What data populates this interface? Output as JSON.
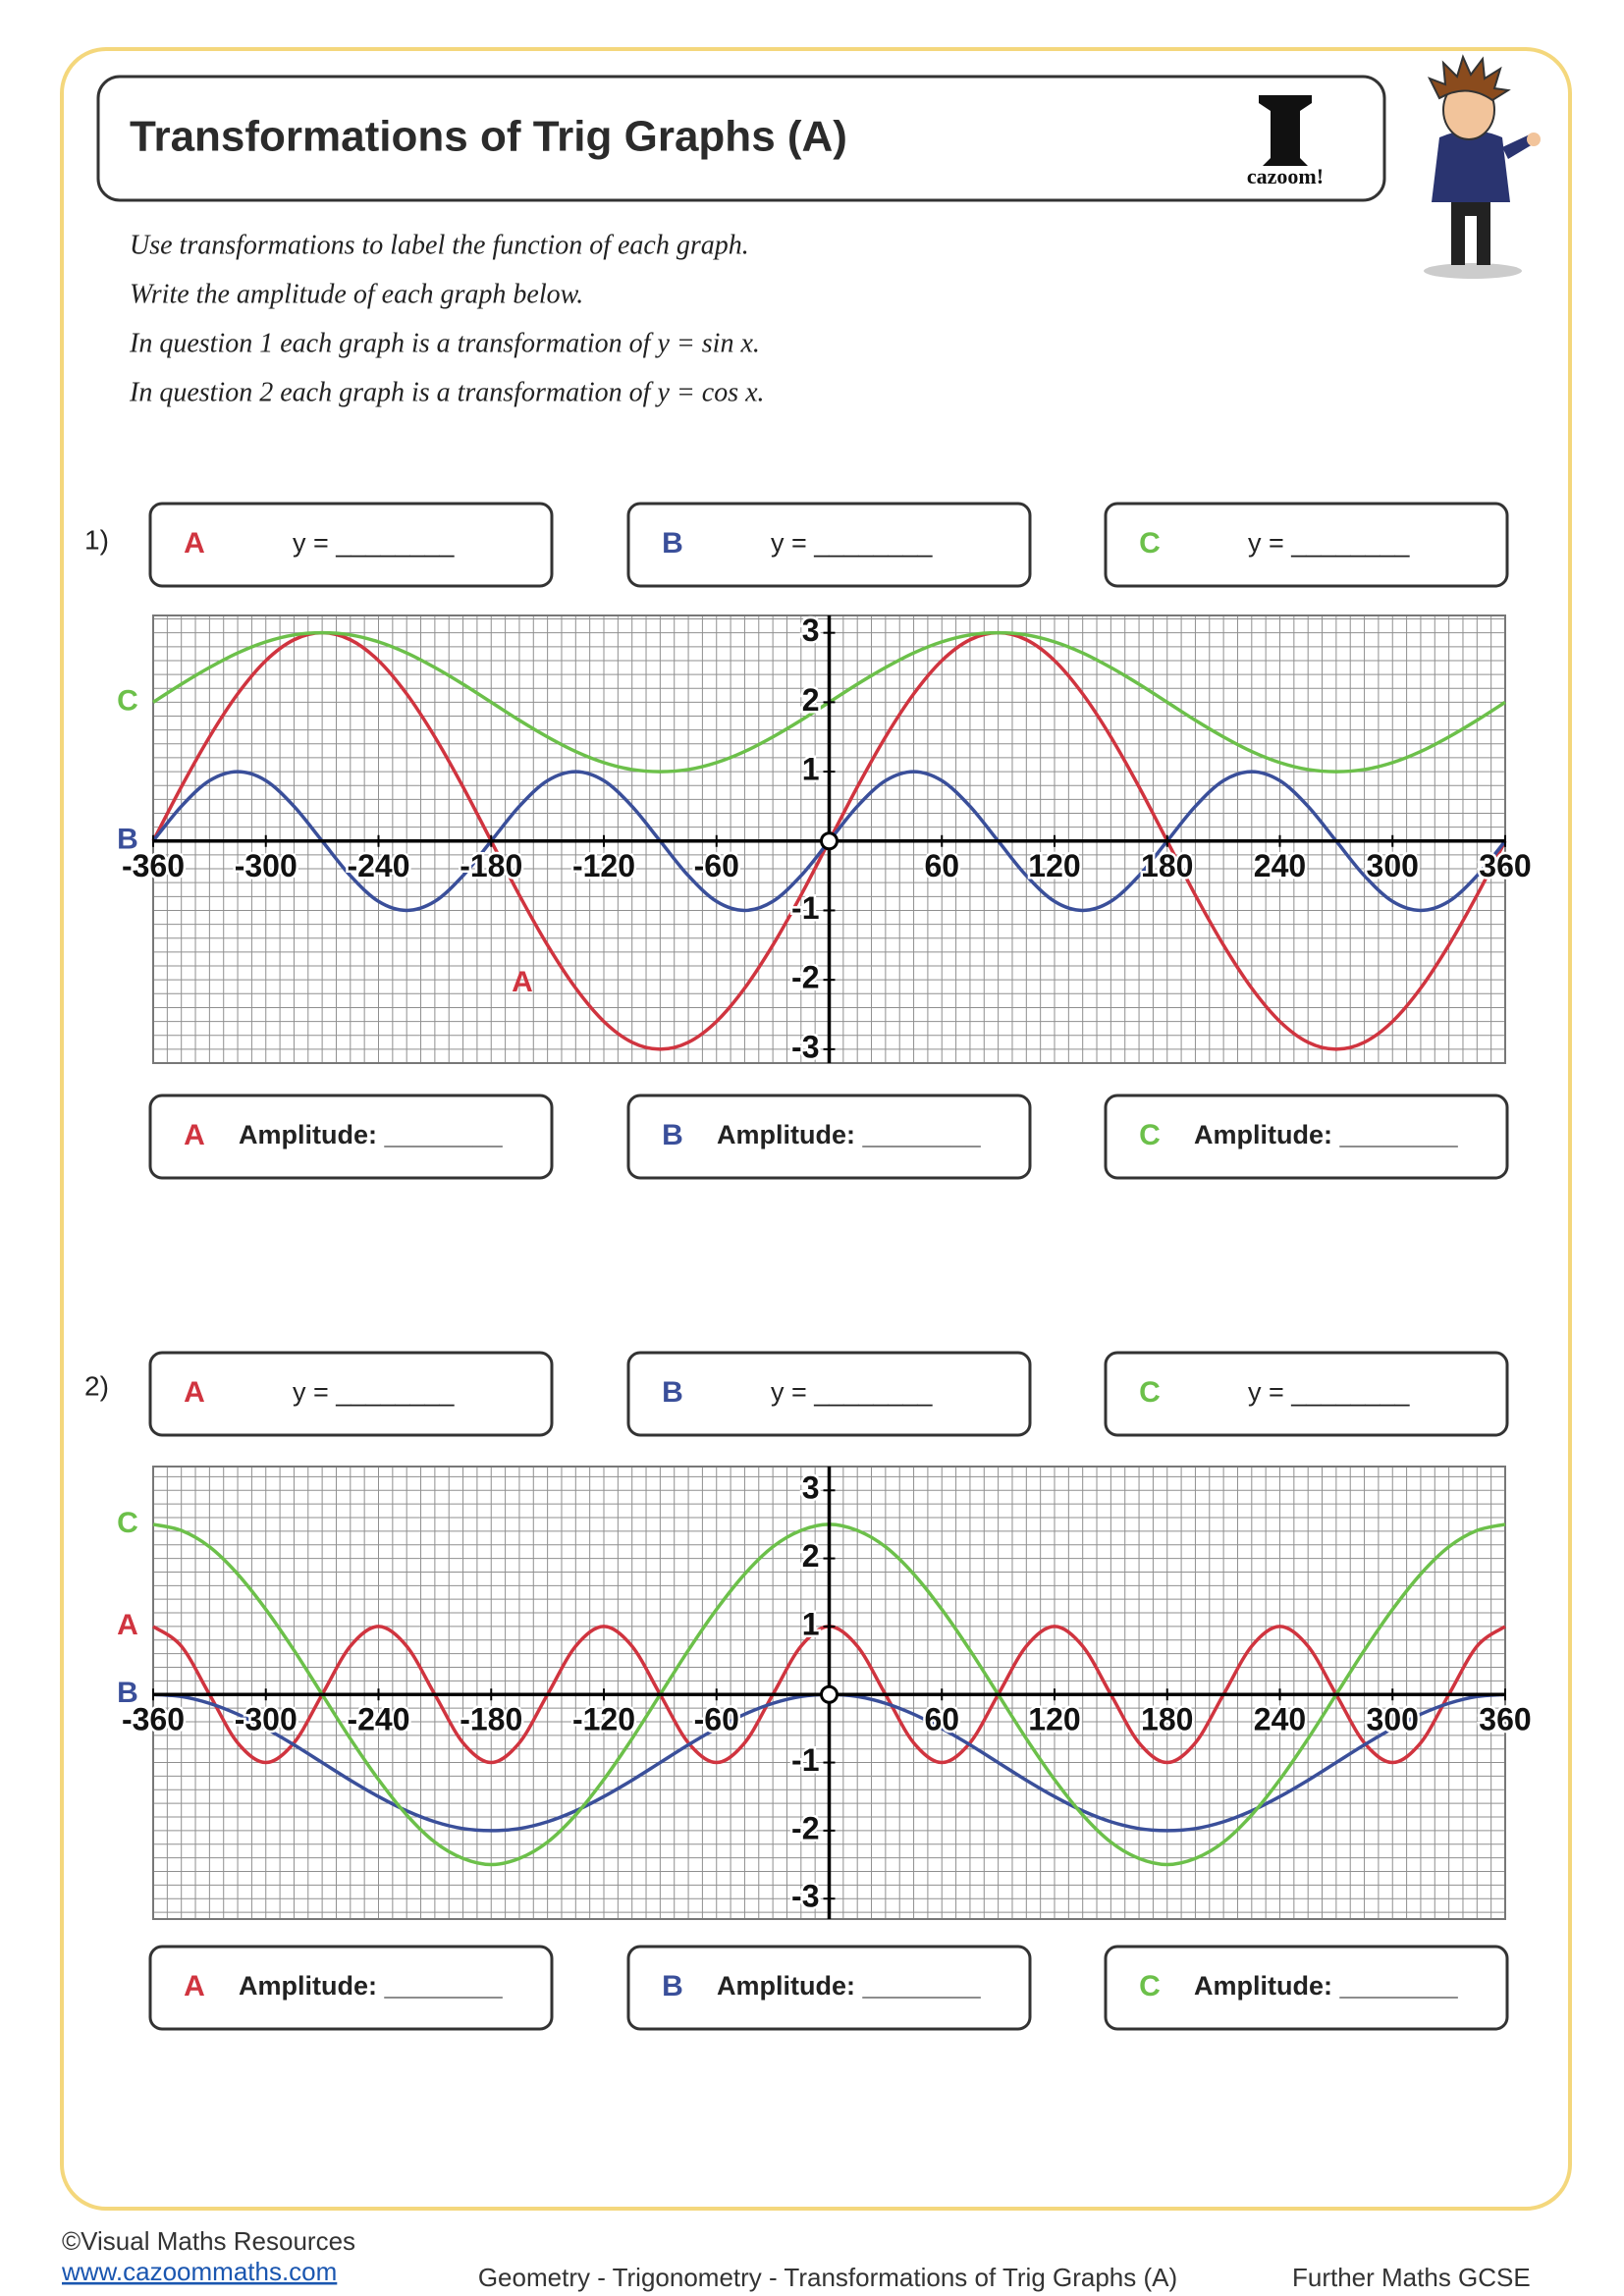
{
  "header": {
    "title": "Transformations of Trig Graphs (A)",
    "logo_text": "cazoom!"
  },
  "instructions": [
    "Use transformations to label the function of each graph.",
    "Write the amplitude of each graph below.",
    "In question 1 each graph is a transformation of y = sin x.",
    "In question 2 each graph is a transformation of y = cos x."
  ],
  "questions": [
    {
      "number": "1)",
      "answers": [
        {
          "letter": "A",
          "prompt": "y = ________"
        },
        {
          "letter": "B",
          "prompt": "y = ________"
        },
        {
          "letter": "C",
          "prompt": "y = ________"
        }
      ],
      "amplitudes": [
        {
          "letter": "A",
          "label": "Amplitude: ________"
        },
        {
          "letter": "B",
          "label": "Amplitude: ________"
        },
        {
          "letter": "C",
          "label": "Amplitude: ________"
        }
      ]
    },
    {
      "number": "2)",
      "answers": [
        {
          "letter": "A",
          "prompt": "y = ________"
        },
        {
          "letter": "B",
          "prompt": "y = ________"
        },
        {
          "letter": "C",
          "prompt": "y = ________"
        }
      ],
      "amplitudes": [
        {
          "letter": "A",
          "label": "Amplitude: ________"
        },
        {
          "letter": "B",
          "label": "Amplitude: ________"
        },
        {
          "letter": "C",
          "label": "Amplitude: ________"
        }
      ]
    }
  ],
  "chart_data": [
    {
      "type": "line",
      "grid": true,
      "xlim": [
        -360,
        360
      ],
      "ylim": [
        -3.2,
        3.25
      ],
      "xticks": [
        -360,
        -300,
        -240,
        -180,
        -120,
        -60,
        60,
        120,
        180,
        240,
        300,
        360
      ],
      "yticks": [
        -3,
        -2,
        -1,
        1,
        2,
        3
      ],
      "x": [
        -360,
        -345,
        -330,
        -315,
        -300,
        -285,
        -270,
        -255,
        -240,
        -225,
        -210,
        -195,
        -180,
        -165,
        -150,
        -135,
        -120,
        -105,
        -90,
        -75,
        -60,
        -45,
        -30,
        -15,
        0,
        15,
        30,
        45,
        60,
        75,
        90,
        105,
        120,
        135,
        150,
        165,
        180,
        195,
        210,
        225,
        240,
        255,
        270,
        285,
        300,
        315,
        330,
        345,
        360
      ],
      "series": [
        {
          "name": "A",
          "color": "#d0343f",
          "values": [
            0,
            0.78,
            1.5,
            2.12,
            2.6,
            2.9,
            3,
            2.9,
            2.6,
            2.12,
            1.5,
            0.78,
            0,
            -0.78,
            -1.5,
            -2.12,
            -2.6,
            -2.9,
            -3,
            -2.9,
            -2.6,
            -2.12,
            -1.5,
            -0.78,
            0,
            0.78,
            1.5,
            2.12,
            2.6,
            2.9,
            3,
            2.9,
            2.6,
            2.12,
            1.5,
            0.78,
            0,
            -0.78,
            -1.5,
            -2.12,
            -2.6,
            -2.9,
            -3,
            -2.9,
            -2.6,
            -2.12,
            -1.5,
            -0.78,
            0
          ]
        },
        {
          "name": "B",
          "color": "#3a4f9a",
          "values": [
            0,
            0.5,
            0.87,
            1,
            0.87,
            0.5,
            0,
            -0.5,
            -0.87,
            -1,
            -0.87,
            -0.5,
            0,
            0.5,
            0.87,
            1,
            0.87,
            0.5,
            0,
            -0.5,
            -0.87,
            -1,
            -0.87,
            -0.5,
            0,
            0.5,
            0.87,
            1,
            0.87,
            0.5,
            0,
            -0.5,
            -0.87,
            -1,
            -0.87,
            -0.5,
            0,
            0.5,
            0.87,
            1,
            0.87,
            0.5,
            0,
            -0.5,
            -0.87,
            -1,
            -0.87,
            -0.5,
            0
          ]
        },
        {
          "name": "C",
          "color": "#6cc04a",
          "values": [
            2,
            2.26,
            2.5,
            2.71,
            2.87,
            2.97,
            3,
            2.97,
            2.87,
            2.71,
            2.5,
            2.26,
            2,
            1.74,
            1.5,
            1.29,
            1.13,
            1.03,
            1,
            1.03,
            1.13,
            1.29,
            1.5,
            1.74,
            2,
            2.26,
            2.5,
            2.71,
            2.87,
            2.97,
            3,
            2.97,
            2.87,
            2.71,
            2.5,
            2.26,
            2,
            1.74,
            1.5,
            1.29,
            1.13,
            1.03,
            1,
            1.03,
            1.13,
            1.29,
            1.5,
            1.74,
            2
          ]
        }
      ]
    },
    {
      "type": "line",
      "grid": true,
      "xlim": [
        -360,
        360
      ],
      "ylim": [
        -3.3,
        3.35
      ],
      "xticks": [
        -360,
        -300,
        -240,
        -180,
        -120,
        -60,
        60,
        120,
        180,
        240,
        300,
        360
      ],
      "yticks": [
        -3,
        -2,
        -1,
        1,
        2,
        3
      ],
      "x": [
        -360,
        -345,
        -330,
        -315,
        -300,
        -285,
        -270,
        -255,
        -240,
        -225,
        -210,
        -195,
        -180,
        -165,
        -150,
        -135,
        -120,
        -105,
        -90,
        -75,
        -60,
        -45,
        -30,
        -15,
        0,
        15,
        30,
        45,
        60,
        75,
        90,
        105,
        120,
        135,
        150,
        165,
        180,
        195,
        210,
        225,
        240,
        255,
        270,
        285,
        300,
        315,
        330,
        345,
        360
      ],
      "series": [
        {
          "name": "A",
          "color": "#d0343f",
          "values": [
            1,
            0.71,
            0,
            -0.71,
            -1,
            -0.71,
            0,
            0.71,
            1,
            0.71,
            0,
            -0.71,
            -1,
            -0.71,
            0,
            0.71,
            1,
            0.71,
            0,
            -0.71,
            -1,
            -0.71,
            0,
            0.71,
            1,
            0.71,
            0,
            -0.71,
            -1,
            -0.71,
            0,
            0.71,
            1,
            0.71,
            0,
            -0.71,
            -1,
            -0.71,
            0,
            0.71,
            1,
            0.71,
            0,
            -0.71,
            -1,
            -0.71,
            0,
            0.71,
            1
          ]
        },
        {
          "name": "B",
          "color": "#3a4f9a",
          "values": [
            0,
            -0.03,
            -0.13,
            -0.29,
            -0.5,
            -0.74,
            -1,
            -1.26,
            -1.5,
            -1.71,
            -1.87,
            -1.97,
            -2,
            -1.97,
            -1.87,
            -1.71,
            -1.5,
            -1.26,
            -1,
            -0.74,
            -0.5,
            -0.29,
            -0.13,
            -0.03,
            0,
            -0.03,
            -0.13,
            -0.29,
            -0.5,
            -0.74,
            -1,
            -1.26,
            -1.5,
            -1.71,
            -1.87,
            -1.97,
            -2,
            -1.97,
            -1.87,
            -1.71,
            -1.5,
            -1.26,
            -1,
            -0.74,
            -0.5,
            -0.29,
            -0.13,
            -0.03,
            0
          ]
        },
        {
          "name": "C",
          "color": "#6cc04a",
          "values": [
            2.5,
            2.41,
            2.17,
            1.77,
            1.25,
            0.65,
            0,
            -0.65,
            -1.25,
            -1.77,
            -2.17,
            -2.41,
            -2.5,
            -2.41,
            -2.17,
            -1.77,
            -1.25,
            -0.65,
            0,
            0.65,
            1.25,
            1.77,
            2.17,
            2.41,
            2.5,
            2.41,
            2.17,
            1.77,
            1.25,
            0.65,
            0,
            -0.65,
            -1.25,
            -1.77,
            -2.17,
            -2.41,
            -2.5,
            -2.41,
            -2.17,
            -1.77,
            -1.25,
            -0.65,
            0,
            0.65,
            1.25,
            1.77,
            2.17,
            2.41,
            2.5
          ]
        }
      ]
    }
  ],
  "footer": {
    "copyright": "©Visual Maths Resources",
    "url": "www.cazoommaths.com",
    "topic": "Geometry - Trigonometry - Transformations of Trig Graphs (A)",
    "level": "Further Maths GCSE"
  }
}
